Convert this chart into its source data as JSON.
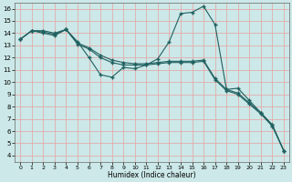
{
  "title": "",
  "xlabel": "Humidex (Indice chaleur)",
  "ylabel": "",
  "xlim": [
    -0.5,
    23.5
  ],
  "ylim": [
    3.5,
    16.5
  ],
  "xticks": [
    0,
    1,
    2,
    3,
    4,
    5,
    6,
    7,
    8,
    9,
    10,
    11,
    12,
    13,
    14,
    15,
    16,
    17,
    18,
    19,
    20,
    21,
    22,
    23
  ],
  "yticks": [
    4,
    5,
    6,
    7,
    8,
    9,
    10,
    11,
    12,
    13,
    14,
    15,
    16
  ],
  "bg_color": "#cce8e8",
  "grid_major_color": "#e8a0a0",
  "grid_minor_color": "#e8c0c0",
  "line_color": "#206060",
  "line1_x": [
    0,
    1,
    2,
    3,
    4,
    5,
    6,
    7,
    8,
    9,
    10,
    11,
    12,
    13,
    14,
    15,
    16,
    17,
    18,
    19,
    20,
    21,
    22,
    23
  ],
  "line1_y": [
    13.5,
    14.2,
    14.2,
    14.0,
    14.3,
    13.3,
    12.0,
    10.6,
    10.4,
    11.2,
    11.1,
    11.4,
    11.9,
    13.3,
    15.6,
    15.7,
    16.2,
    14.7,
    9.4,
    9.5,
    8.5,
    7.5,
    6.5,
    4.4
  ],
  "line2_x": [
    0,
    1,
    2,
    3,
    4,
    5,
    6,
    7,
    8,
    9,
    10,
    11,
    12,
    13,
    14,
    15,
    16,
    17,
    18,
    19,
    20,
    21,
    22,
    23
  ],
  "line2_y": [
    13.5,
    14.2,
    14.1,
    13.9,
    14.3,
    13.2,
    12.8,
    12.2,
    11.8,
    11.6,
    11.5,
    11.5,
    11.6,
    11.7,
    11.7,
    11.7,
    11.8,
    10.3,
    9.4,
    9.1,
    8.3,
    7.5,
    6.5,
    4.4
  ],
  "line3_x": [
    0,
    1,
    2,
    3,
    4,
    5,
    6,
    7,
    8,
    9,
    10,
    11,
    12,
    13,
    14,
    15,
    16,
    17,
    18,
    19,
    20,
    21,
    22,
    23
  ],
  "line3_y": [
    13.5,
    14.2,
    14.0,
    13.8,
    14.3,
    13.1,
    12.7,
    12.0,
    11.6,
    11.4,
    11.4,
    11.4,
    11.5,
    11.6,
    11.6,
    11.6,
    11.7,
    10.2,
    9.3,
    9.0,
    8.2,
    7.4,
    6.4,
    4.4
  ],
  "marker": "+",
  "markersize": 3.5,
  "linewidth": 0.8
}
